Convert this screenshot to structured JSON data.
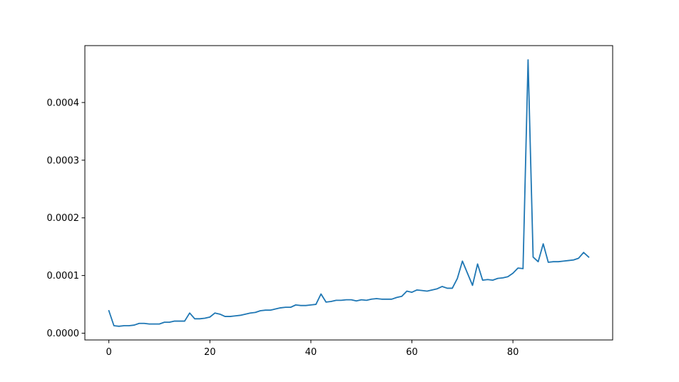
{
  "chart_data": {
    "type": "line",
    "title": "",
    "xlabel": "",
    "ylabel": "",
    "xlim": [
      -4.75,
      99.75
    ],
    "ylim": [
      -1.17e-05,
      0.0004987
    ],
    "grid": false,
    "colors": {
      "line": "#1f77b4"
    },
    "xticks": [
      {
        "value": 0,
        "label": "0"
      },
      {
        "value": 20,
        "label": "20"
      },
      {
        "value": 40,
        "label": "40"
      },
      {
        "value": 60,
        "label": "60"
      },
      {
        "value": 80,
        "label": "80"
      }
    ],
    "yticks": [
      {
        "value": 0,
        "label": "0.0000"
      },
      {
        "value": 0.0001,
        "label": "0.0001"
      },
      {
        "value": 0.0002,
        "label": "0.0002"
      },
      {
        "value": 0.0003,
        "label": "0.0003"
      },
      {
        "value": 0.0004,
        "label": "0.0004"
      }
    ],
    "series": [
      {
        "x": [
          0,
          1,
          2,
          3,
          4,
          5,
          6,
          7,
          8,
          9,
          10,
          11,
          12,
          13,
          14,
          15,
          16,
          17,
          18,
          19,
          20,
          21,
          22,
          23,
          24,
          25,
          26,
          27,
          28,
          29,
          30,
          31,
          32,
          33,
          34,
          35,
          36,
          37,
          38,
          39,
          40,
          41,
          42,
          43,
          44,
          45,
          46,
          47,
          48,
          49,
          50,
          51,
          52,
          53,
          54,
          55,
          56,
          57,
          58,
          59,
          60,
          61,
          62,
          63,
          64,
          65,
          66,
          67,
          68,
          69,
          70,
          71,
          72,
          73,
          74,
          75,
          76,
          77,
          78,
          79,
          80,
          81,
          82,
          83,
          84,
          85,
          86,
          87,
          88,
          89,
          90,
          91,
          92,
          93,
          94,
          95
        ],
        "values": [
          3.9e-05,
          1.3e-05,
          1.2e-05,
          1.3e-05,
          1.3e-05,
          1.4e-05,
          1.7e-05,
          1.7e-05,
          1.6e-05,
          1.6e-05,
          1.6e-05,
          1.9e-05,
          1.9e-05,
          2.1e-05,
          2.1e-05,
          2.1e-05,
          3.5e-05,
          2.5e-05,
          2.5e-05,
          2.6e-05,
          2.8e-05,
          3.5e-05,
          3.3e-05,
          2.9e-05,
          2.9e-05,
          3e-05,
          3.1e-05,
          3.3e-05,
          3.5e-05,
          3.6e-05,
          3.9e-05,
          4e-05,
          4e-05,
          4.2e-05,
          4.4e-05,
          4.5e-05,
          4.5e-05,
          4.9e-05,
          4.8e-05,
          4.8e-05,
          4.9e-05,
          5e-05,
          6.8e-05,
          5.4e-05,
          5.5e-05,
          5.7e-05,
          5.7e-05,
          5.8e-05,
          5.8e-05,
          5.6e-05,
          5.8e-05,
          5.7e-05,
          5.9e-05,
          6e-05,
          5.9e-05,
          5.9e-05,
          5.9e-05,
          6.2e-05,
          6.4e-05,
          7.3e-05,
          7.1e-05,
          7.5e-05,
          7.4e-05,
          7.3e-05,
          7.5e-05,
          7.7e-05,
          8.1e-05,
          7.8e-05,
          7.8e-05,
          9.5e-05,
          0.000125,
          0.000104,
          8.3e-05,
          0.00012,
          9.2e-05,
          9.3e-05,
          9.2e-05,
          9.5e-05,
          9.6e-05,
          9.8e-05,
          0.000104,
          0.000113,
          0.000112,
          0.000474,
          0.000132,
          0.000124,
          0.000155,
          0.000123,
          0.000124,
          0.000124,
          0.000125,
          0.000126,
          0.000127,
          0.00013,
          0.00014,
          0.000132
        ]
      }
    ]
  }
}
